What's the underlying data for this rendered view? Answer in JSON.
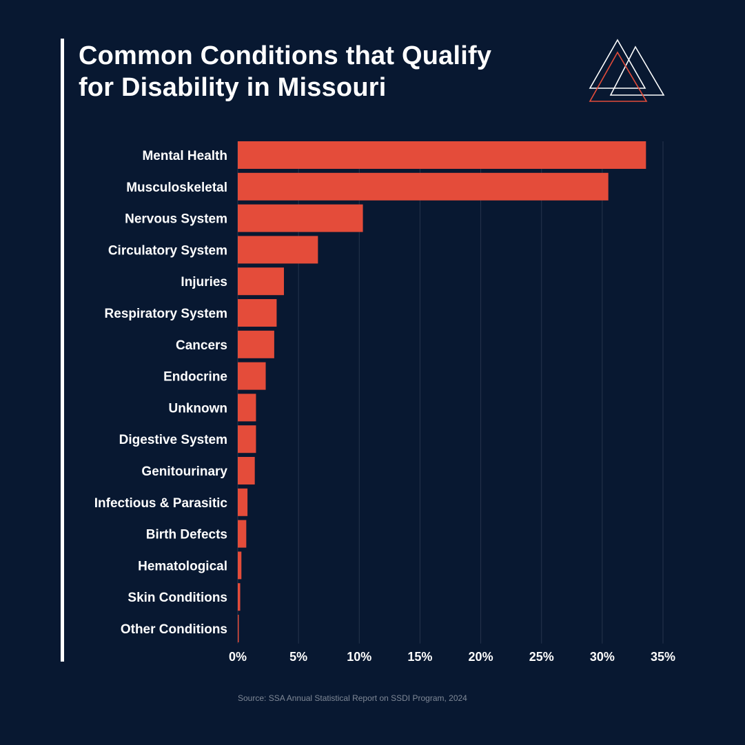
{
  "header": {
    "title_line1": "Common Conditions that Qualify",
    "title_line2": "for Disability in Missouri"
  },
  "logo": {
    "icon": "triangles-logo-icon",
    "colors": [
      "#ffffff",
      "#e44c3a"
    ]
  },
  "colors": {
    "background": "#081831",
    "bar": "#e44c3a",
    "grid": "#26344d",
    "text": "#ffffff",
    "source": "#7f8896"
  },
  "chart_data": {
    "type": "bar",
    "orientation": "horizontal",
    "categories": [
      "Mental Health",
      "Musculoskeletal",
      "Nervous System",
      "Circulatory System",
      "Injuries",
      "Respiratory System",
      "Cancers",
      "Endocrine",
      "Unknown",
      "Digestive System",
      "Genitourinary",
      "Infectious & Parasitic",
      "Birth Defects",
      "Hematological",
      "Skin Conditions",
      "Other Conditions"
    ],
    "values": [
      33.6,
      30.5,
      10.3,
      6.6,
      3.8,
      3.2,
      3.0,
      2.3,
      1.5,
      1.5,
      1.4,
      0.8,
      0.7,
      0.3,
      0.2,
      0.05
    ],
    "xlim": [
      0,
      35
    ],
    "xticks": [
      "0%",
      "5%",
      "10%",
      "15%",
      "20%",
      "25%",
      "30%",
      "35%"
    ],
    "grid": true,
    "bar_color": "#e44c3a"
  },
  "footer": {
    "source": "Source: SSA Annual Statistical Report on SSDI Program, 2024"
  }
}
